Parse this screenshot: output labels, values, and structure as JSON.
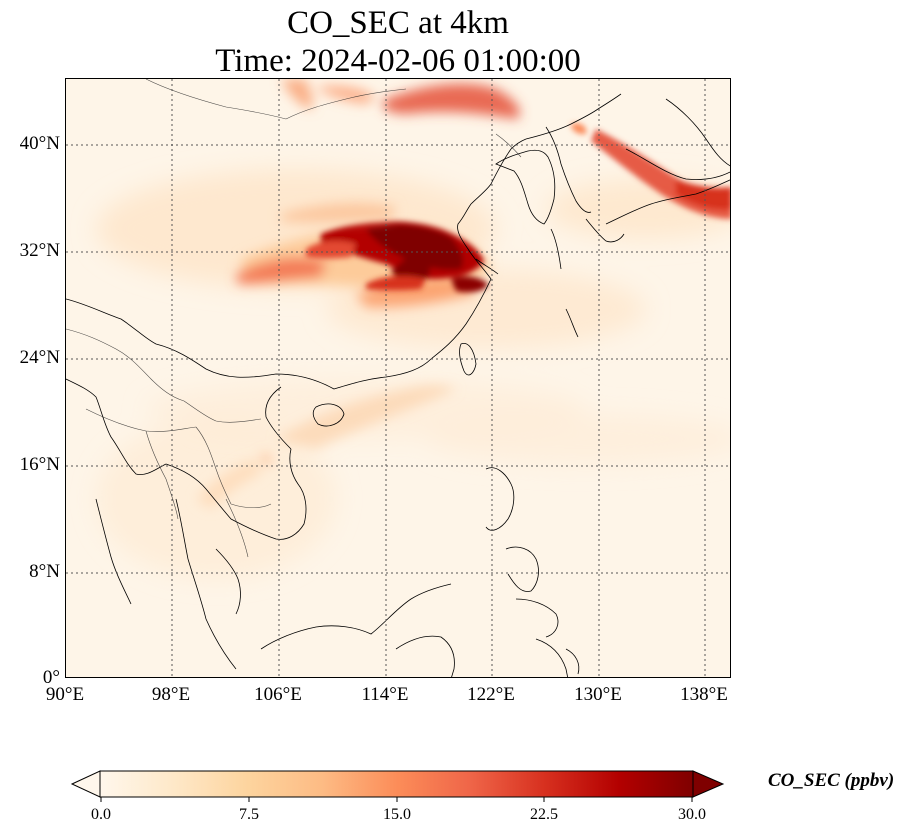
{
  "title": {
    "line1": "CO_SEC at 4km",
    "line2": "Time: 2024-02-06 01:00:00"
  },
  "map": {
    "lat_labels": [
      "40°N",
      "32°N",
      "24°N",
      "16°N",
      "8°N",
      "0°"
    ],
    "lon_labels": [
      "90°E",
      "98°E",
      "106°E",
      "114°E",
      "122°E",
      "130°E",
      "138°E"
    ],
    "lat_range": [
      0,
      45
    ],
    "lon_range": [
      90,
      140
    ],
    "colormap": "OrRd"
  },
  "colorbar": {
    "label": "CO_SEC (ppbv)",
    "ticks": [
      "0.0",
      "7.5",
      "15.0",
      "22.5",
      "30.0"
    ],
    "range": [
      0,
      30
    ],
    "extend": "both",
    "colors": [
      "#fff7ec",
      "#fee8c8",
      "#fdd49e",
      "#fdbb84",
      "#fc8d59",
      "#ef6548",
      "#d7301f",
      "#b30000",
      "#7f0000"
    ]
  }
}
